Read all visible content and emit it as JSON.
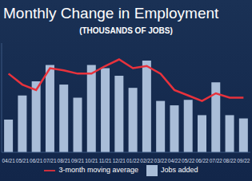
{
  "chart_data": {
    "type": "bar",
    "title": "Monthly Change in Employment",
    "subtitle": "(THOUSANDS OF JOBS)",
    "categories": [
      "04/21",
      "05/21",
      "06/21",
      "07/21",
      "08/21",
      "09/21",
      "10/21",
      "11/21",
      "12/21",
      "01/22",
      "02/22",
      "03/22",
      "04/22",
      "05/22",
      "06/22",
      "07/22",
      "08/22",
      "09/22"
    ],
    "series": [
      {
        "name": "Jobs added",
        "type": "bar",
        "color": "#a9bdd8",
        "values": [
          300,
          520,
          650,
          800,
          620,
          500,
          800,
          770,
          700,
          590,
          840,
          470,
          430,
          480,
          340,
          640,
          340,
          310
        ]
      },
      {
        "name": "3-month moving average",
        "type": "line",
        "color": "#e8323c",
        "values": [
          720,
          620,
          570,
          770,
          750,
          720,
          720,
          790,
          850,
          770,
          790,
          720,
          570,
          520,
          470,
          540,
          500,
          500
        ]
      }
    ],
    "ylim": [
      0,
      1000
    ],
    "grid": false,
    "legend": "bottom",
    "tick_labels": "x"
  }
}
